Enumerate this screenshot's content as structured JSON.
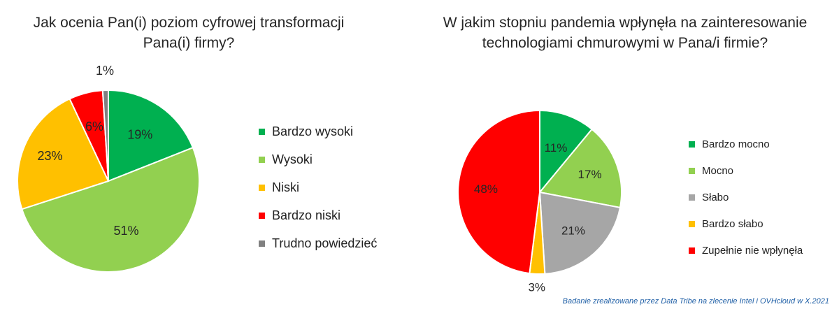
{
  "chart_data": [
    {
      "type": "pie",
      "title": "Jak ocenia Pan(i) poziom cyfrowej transformacji Pana(i) firmy?",
      "categories": [
        "Bardzo wysoki",
        "Wysoki",
        "Niski",
        "Bardzo niski",
        "Trudno powiedzieć"
      ],
      "values": [
        19,
        51,
        23,
        6,
        1
      ],
      "value_labels": [
        "19%",
        "51%",
        "23%",
        "6%",
        "1%"
      ],
      "colors": [
        "#00b050",
        "#92d050",
        "#ffc000",
        "#ff0000",
        "#808080"
      ],
      "legend_position": "right"
    },
    {
      "type": "pie",
      "title": "W jakim stopniu pandemia wpłynęła na zainteresowanie technologiami chmurowymi w Pana/i firmie?",
      "categories": [
        "Bardzo mocno",
        "Mocno",
        "Słabo",
        "Bardzo słabo",
        "Zupełnie nie wpłynęła"
      ],
      "values": [
        11,
        17,
        21,
        3,
        48
      ],
      "value_labels": [
        "11%",
        "17%",
        "21%",
        "3%",
        "48%"
      ],
      "colors": [
        "#00b050",
        "#92d050",
        "#a6a6a6",
        "#ffc000",
        "#ff0000"
      ],
      "legend_position": "right"
    }
  ],
  "footnote": "Badanie zrealizowane przez Data Tribe na zlecenie Intel i OVHcloud w X.2021"
}
